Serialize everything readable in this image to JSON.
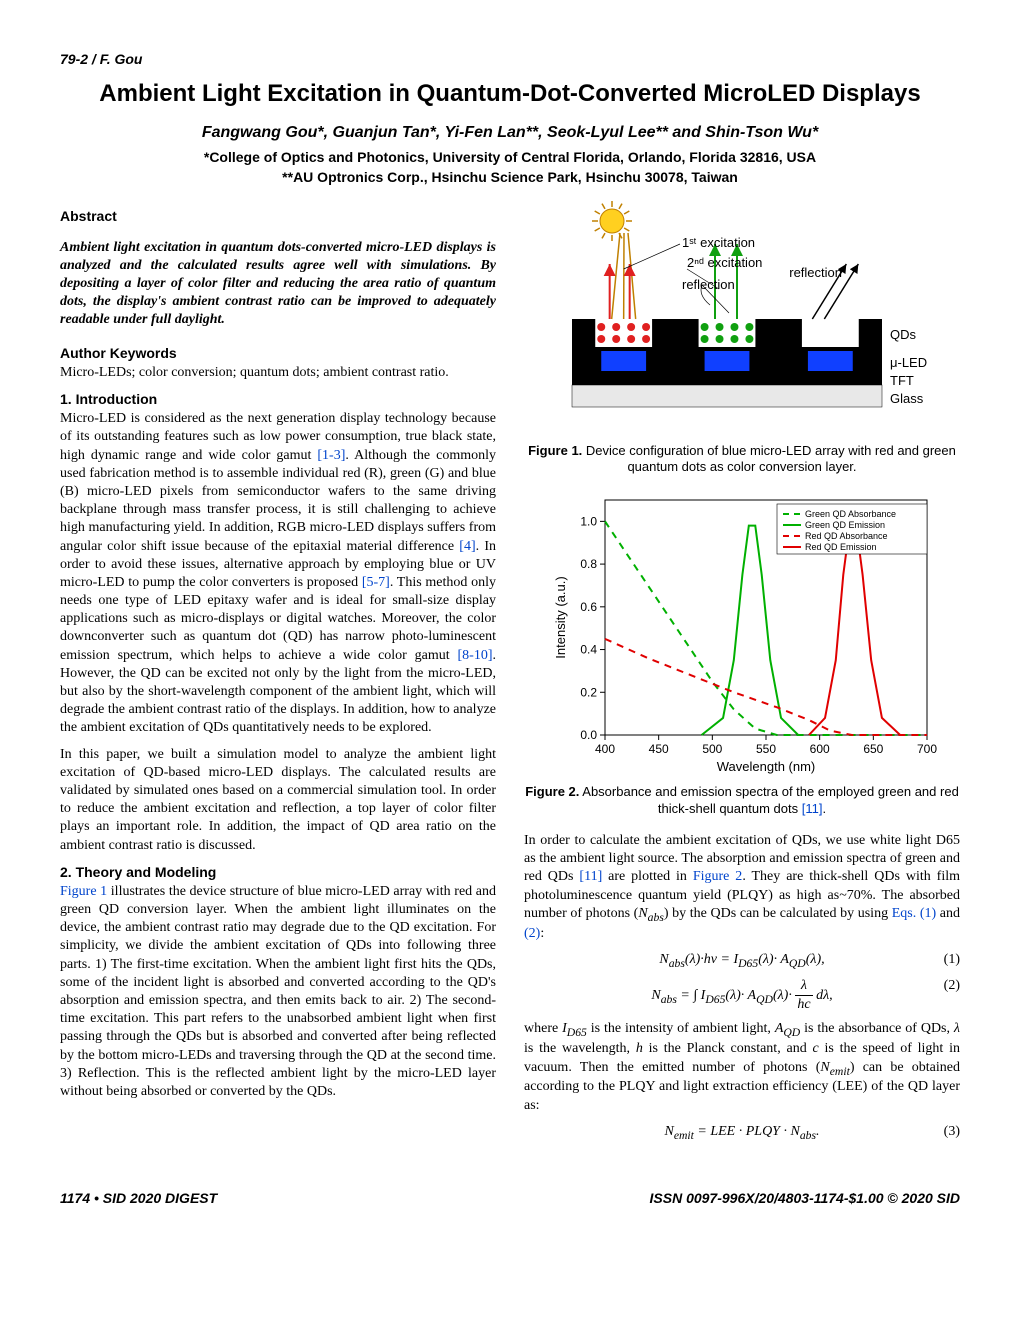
{
  "runhead": "79-2 / F. Gou",
  "title": "Ambient Light Excitation in Quantum-Dot-Converted MicroLED Displays",
  "authors": "Fangwang Gou*, Guanjun Tan*, Yi-Fen Lan**, Seok-Lyul Lee** and Shin-Tson Wu*",
  "affil1": "*College of Optics and Photonics, University of Central Florida, Orlando, Florida 32816, USA",
  "affil2": "**AU Optronics Corp., Hsinchu Science Park, Hsinchu 30078, Taiwan",
  "abstract_h": "Abstract",
  "abstract": "Ambient light excitation in quantum dots-converted micro-LED displays is analyzed and the calculated results agree well with simulations. By depositing a layer of color filter and reducing the area ratio of quantum dots, the display's ambient contrast ratio can be improved to adequately readable under full daylight.",
  "keywords_h": "Author Keywords",
  "keywords": "Micro-LEDs; color conversion; quantum dots; ambient contrast ratio.",
  "intro_h": "1.   Introduction",
  "intro_p1a": "Micro-LED is considered as the next generation display technology because of its outstanding features such as low power consumption, true black state, high dynamic range and wide color gamut ",
  "intro_ref1": "[1-3]",
  "intro_p1b": ". Although the commonly used fabrication method is to assemble individual red (R), green (G) and blue (B) micro-LED pixels from semiconductor wafers to the same driving backplane through mass transfer process, it is still challenging to achieve high manufacturing yield. In addition, RGB micro-LED displays suffers from angular color shift issue because of the epitaxial material difference ",
  "intro_ref2": "[4]",
  "intro_p1c": ". In order to avoid these issues, alternative approach by employing blue or UV micro-LED to pump the color converters is proposed ",
  "intro_ref3": "[5-7]",
  "intro_p1d": ". This method only needs one type of LED epitaxy wafer and is ideal for small-size display applications such as micro-displays or digital watches. Moreover, the color downconverter such as quantum dot (QD) has narrow photo-luminescent emission spectrum, which helps to achieve a wide color gamut ",
  "intro_ref4": "[8-10]",
  "intro_p1e": ". However, the QD can be excited not only by the light from the micro-LED, but also by the short-wavelength component of the ambient light, which will degrade the ambient contrast ratio of the displays. In addition, how to analyze the ambient excitation of QDs quantitatively needs to be explored.",
  "intro_p2": "In this paper, we built a simulation model to analyze the ambient light excitation of QD-based micro-LED displays. The calculated results are validated by simulated ones based on a commercial simulation tool. In order to reduce the ambient excitation and reflection, a top layer of color filter plays an important role. In addition, the impact of QD area ratio on the ambient contrast ratio is discussed.",
  "theory_h": "2.   Theory and Modeling",
  "theory_ref1": "Figure 1",
  "theory_p1": " illustrates the device structure of blue micro-LED array with red and green QD conversion layer. When the ambient light illuminates on the device, the ambient contrast ratio may degrade due to the QD excitation. For simplicity, we divide the ambient excitation of QDs into following three parts. 1) The first-time excitation. When the ambient light first hits the QDs, some of the incident light is absorbed and converted according to the QD's absorption and emission spectra, and then emits back to air. 2) The second-time excitation. This part refers to the unabsorbed ambient light when first passing through the QDs but is absorbed and converted after being reflected by the bottom micro-LEDs and traversing through the QD at the second time. 3) Reflection. This is the reflected ambient light by the micro-LED layer without being absorbed or converted by the QDs.",
  "fig1_cap_b": "Figure 1.",
  "fig1_cap": " Device configuration of blue micro-LED array with red and green quantum dots as color conversion layer.",
  "fig2_cap_b": "Figure 2.",
  "fig2_cap_a": " Absorbance and emission spectra of the employed green and red thick-shell quantum dots ",
  "fig2_ref": "[11]",
  "fig2_cap_c": ".",
  "col2_p1a": "In order to calculate the ambient excitation of QDs, we use white light D65 as the ambient light source. The absorption and emission spectra of green and red QDs ",
  "col2_ref1": "[11]",
  "col2_p1b": " are plotted in ",
  "col2_ref2": "Figure 2",
  "col2_p1c": ". They are thick-shell QDs with film photoluminescence quantum yield (PLQY) as high as~70%. The absorbed number of photons (",
  "col2_var1": "N",
  "col2_sub1": "abs",
  "col2_p1d": ") by the QDs can be calculated by using ",
  "col2_ref3": "Eqs. (1)",
  "col2_p1e": " and ",
  "col2_ref4": "(2)",
  "col2_p1f": ":",
  "eq1": "N<sub>abs</sub>(λ)·hν = I<sub>D65</sub>(λ)· A<sub>QD</sub>(λ),",
  "eq1n": "(1)",
  "eq2": "N<sub>abs</sub> = ∫ I<sub>D65</sub>(λ)· A<sub>QD</sub>(λ)· <span style='display:inline-block;vertical-align:middle'><span style='display:block;border-bottom:1px solid #000;padding:0 2px'>λ</span><span style='display:block;padding:0 2px'>hc</span></span> dλ,",
  "eq2n": "(2)",
  "col2_p2a": "where ",
  "col2_v2": "I",
  "col2_s2": "D65",
  "col2_p2b": " is the intensity of ambient light, ",
  "col2_v3": "A",
  "col2_s3": "QD",
  "col2_p2c": " is the absorbance of QDs, ",
  "col2_v4": "λ",
  "col2_p2d": " is the wavelength, ",
  "col2_v5": "h",
  "col2_p2e": " is the Planck constant, and ",
  "col2_v6": "c",
  "col2_p2f": " is the speed of light in vacuum. Then the emitted number of photons (",
  "col2_v7": "N",
  "col2_s7": "emit",
  "col2_p2g": ") can be obtained according to the PLQY and light extraction efficiency (LEE) of the QD layer as:",
  "eq3": "N<sub>emit</sub> = LEE · PLQY · N<sub>abs</sub>.",
  "eq3n": "(3)",
  "footer_l": "1174 • SID 2020 DIGEST",
  "footer_r": "ISSN 0097-996X/20/4803-1174-$1.00 © 2020 SID",
  "fig1": {
    "labels": {
      "exc1": "1ˢᵗ excitation",
      "exc2": "2ⁿᵈ excitation",
      "refl": "reflection",
      "qds": "QDs",
      "uled": "μ-LED",
      "tft": "TFT",
      "glass": "Glass"
    },
    "colors": {
      "black": "#000000",
      "red_qd": "#e02020",
      "green_qd": "#10a010",
      "blue_led": "#1040ff",
      "yellow": "#ffd020",
      "gray_glass": "#e8e8e8"
    }
  },
  "fig2": {
    "xlim": [
      400,
      700
    ],
    "ylim": [
      0,
      1.1
    ],
    "xticks": [
      400,
      450,
      500,
      550,
      600,
      650,
      700
    ],
    "yticks": [
      0.0,
      0.2,
      0.4,
      0.6,
      0.8,
      1.0
    ],
    "xlabel": "Wavelength (nm)",
    "ylabel": "Intensity (a.u.)",
    "legend": [
      "Green QD Absorbance",
      "Green QD Emission",
      "Red QD Absorbance",
      "Red QD Emission"
    ],
    "colors": {
      "green": "#00b000",
      "red": "#e00000",
      "axis": "#000000"
    },
    "series": {
      "green_abs": [
        [
          400,
          1.0
        ],
        [
          420,
          0.85
        ],
        [
          440,
          0.7
        ],
        [
          460,
          0.55
        ],
        [
          480,
          0.4
        ],
        [
          500,
          0.25
        ],
        [
          520,
          0.12
        ],
        [
          540,
          0.03
        ],
        [
          560,
          0.0
        ],
        [
          700,
          0.0
        ]
      ],
      "green_em": [
        [
          490,
          0.0
        ],
        [
          510,
          0.08
        ],
        [
          520,
          0.35
        ],
        [
          528,
          0.75
        ],
        [
          534,
          0.98
        ],
        [
          540,
          0.98
        ],
        [
          546,
          0.75
        ],
        [
          554,
          0.35
        ],
        [
          564,
          0.08
        ],
        [
          580,
          0.0
        ]
      ],
      "red_abs": [
        [
          400,
          0.45
        ],
        [
          440,
          0.36
        ],
        [
          480,
          0.28
        ],
        [
          520,
          0.2
        ],
        [
          560,
          0.13
        ],
        [
          590,
          0.07
        ],
        [
          610,
          0.02
        ],
        [
          630,
          0.0
        ],
        [
          700,
          0.0
        ]
      ],
      "red_em": [
        [
          590,
          0.0
        ],
        [
          605,
          0.08
        ],
        [
          615,
          0.35
        ],
        [
          622,
          0.75
        ],
        [
          628,
          0.98
        ],
        [
          634,
          0.98
        ],
        [
          640,
          0.75
        ],
        [
          648,
          0.35
        ],
        [
          658,
          0.08
        ],
        [
          675,
          0.0
        ]
      ]
    }
  }
}
